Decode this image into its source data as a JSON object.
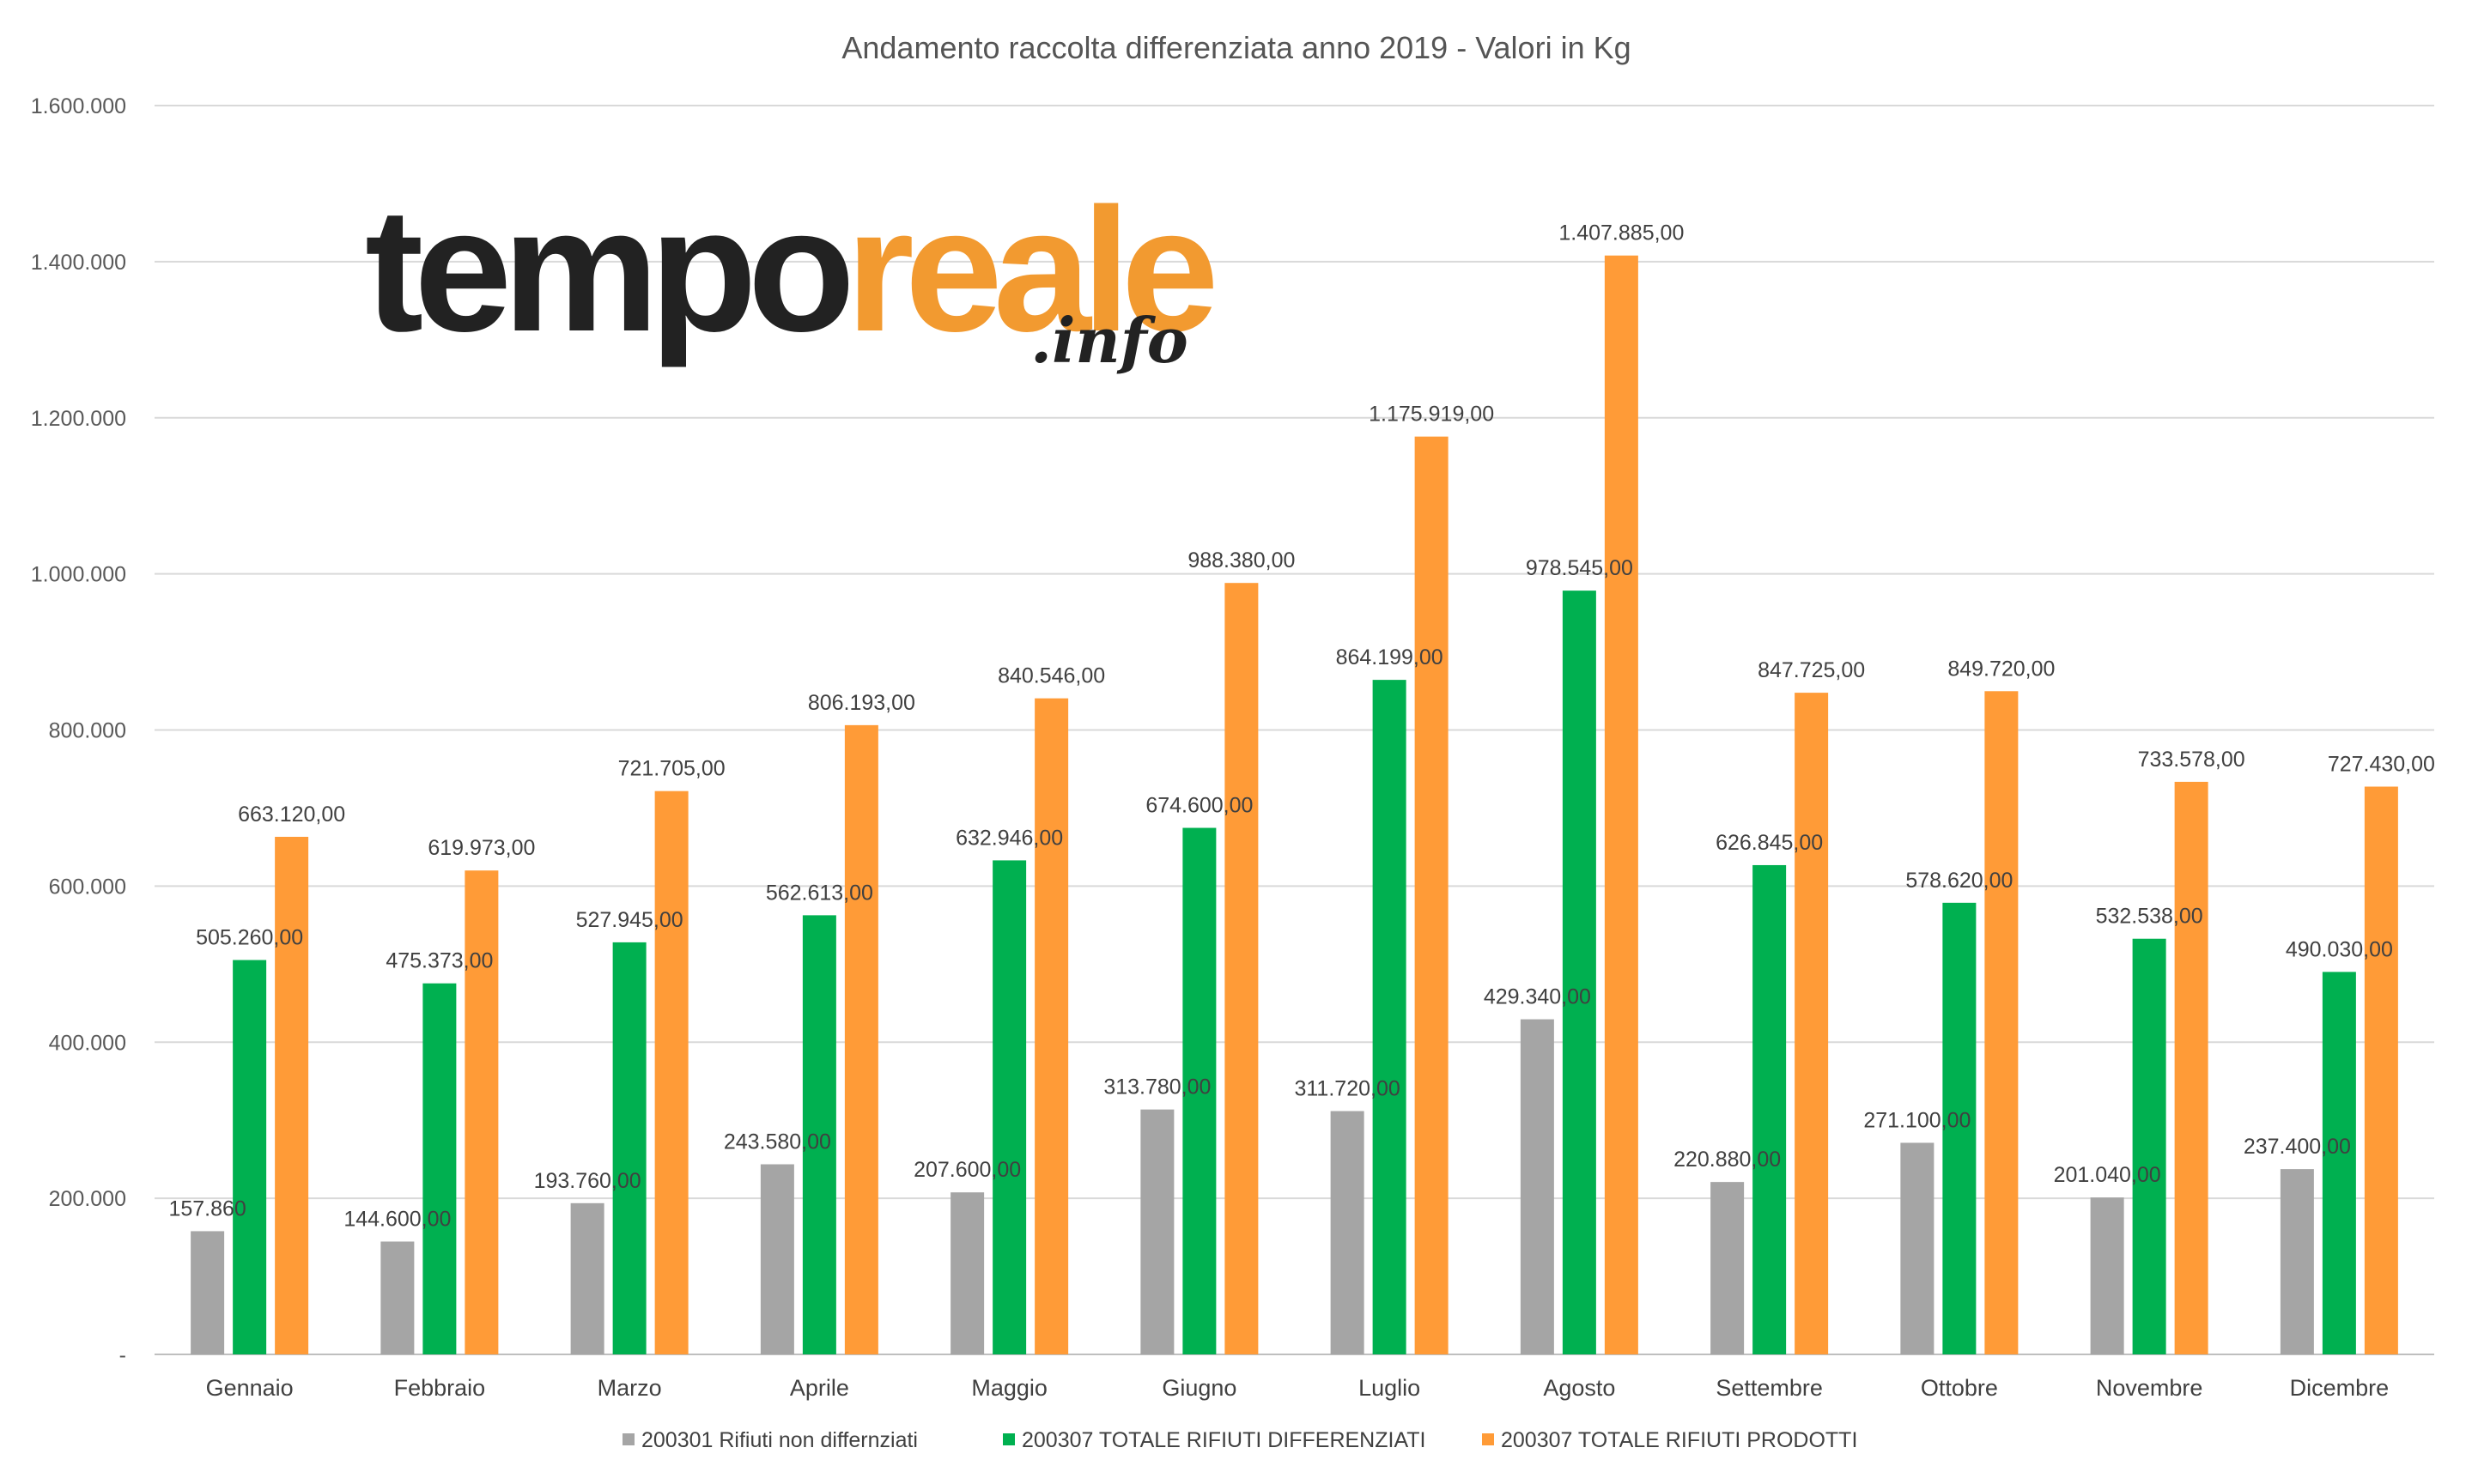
{
  "chart_data": {
    "type": "bar",
    "title": "Andamento raccolta differenziata anno 2019 - Valori in Kg",
    "xlabel": "",
    "ylabel": "",
    "ylim": [
      0,
      1600000
    ],
    "yticks": [
      0,
      200000,
      400000,
      600000,
      800000,
      1000000,
      1200000,
      1400000,
      1600000
    ],
    "ytick_labels": [
      "-",
      "200.000",
      "400.000",
      "600.000",
      "800.000",
      "1.000.000",
      "1.200.000",
      "1.400.000",
      "1.600.000"
    ],
    "grid": true,
    "legend_position": "bottom",
    "categories": [
      "Gennaio",
      "Febbraio",
      "Marzo",
      "Aprile",
      "Maggio",
      "Giugno",
      "Luglio",
      "Agosto",
      "Settembre",
      "Ottobre",
      "Novembre",
      "Dicembre"
    ],
    "series": [
      {
        "name": "200301 Rifiuti non differnziati",
        "color": "#a5a5a5",
        "values": [
          157860,
          144600,
          193760,
          243580,
          207600,
          313780,
          311720,
          429340,
          220880,
          271100,
          201040,
          237400
        ],
        "labels": [
          "157.860",
          "144.600,00",
          "193.760,00",
          "243.580,00",
          "207.600,00",
          "313.780,00",
          "311.720,00",
          "429.340,00",
          "220.880,00",
          "271.100,00",
          "201.040,00",
          "237.400,00"
        ]
      },
      {
        "name": "200307 TOTALE RIFIUTI DIFFERENZIATI",
        "color": "#00b050",
        "values": [
          505260,
          475373,
          527945,
          562613,
          632946,
          674600,
          864199,
          978545,
          626845,
          578620,
          532538,
          490030
        ],
        "labels": [
          "505.260,00",
          "475.373,00",
          "527.945,00",
          "562.613,00",
          "632.946,00",
          "674.600,00",
          "864.199,00",
          "978.545,00",
          "626.845,00",
          "578.620,00",
          "532.538,00",
          "490.030,00"
        ]
      },
      {
        "name": "200307 TOTALE RIFIUTI  PRODOTTI",
        "color": "#ff9b37",
        "values": [
          663120,
          619973,
          721705,
          806193,
          840546,
          988380,
          1175919,
          1407885,
          847725,
          849720,
          733578,
          727430
        ],
        "labels": [
          "663.120,00",
          "619.973,00",
          "721.705,00",
          "806.193,00",
          "840.546,00",
          "988.380,00",
          "1.175.919,00",
          "1.407.885,00",
          "847.725,00",
          "849.720,00",
          "733.578,00",
          "727.430,00"
        ]
      }
    ]
  },
  "colors": {
    "grid": "#d9d9d9",
    "axis": "#bfbfbf"
  },
  "logo": {
    "part1": "tempo",
    "part2": "reale",
    "part3": ".info"
  }
}
